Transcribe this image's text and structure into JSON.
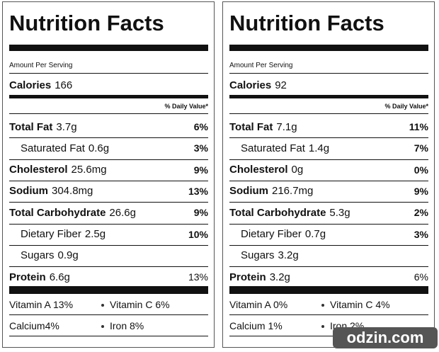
{
  "labels": [
    {
      "title": "Nutrition Facts",
      "amount_per_serving": "Amount Per Serving",
      "calories": {
        "name": "Calories",
        "amount": "166"
      },
      "daily_value_header": "% Daily Value*",
      "rows": [
        {
          "name": "Total Fat",
          "amount": "3.7g",
          "dv": "6%",
          "sub": [
            {
              "name": "Saturated Fat",
              "amount": "0.6g",
              "dv": "3%"
            }
          ]
        },
        {
          "name": "Cholesterol",
          "amount": "25.6mg",
          "dv": "9%"
        },
        {
          "name": "Sodium",
          "amount": "304.8mg",
          "dv": "13%"
        },
        {
          "name": "Total Carbohydrate",
          "amount": "26.6g",
          "dv": "9%",
          "sub": [
            {
              "name": "Dietary Fiber",
              "amount": "2.5g",
              "dv": "10%"
            },
            {
              "name": "Sugars",
              "amount": "0.9g"
            }
          ]
        }
      ],
      "protein": {
        "name": "Protein",
        "amount": "6.6g",
        "dv": "13%"
      },
      "vitamins": [
        [
          "Vitamin A 13%",
          "Vitamin C 6%"
        ],
        [
          "Calcium4%",
          "Iron 8%"
        ]
      ]
    },
    {
      "title": "Nutrition Facts",
      "amount_per_serving": "Amount Per Serving",
      "calories": {
        "name": "Calories",
        "amount": "92"
      },
      "daily_value_header": "% Daily Value*",
      "rows": [
        {
          "name": "Total Fat",
          "amount": "7.1g",
          "dv": "11%",
          "sub": [
            {
              "name": "Saturated Fat",
              "amount": "1.4g",
              "dv": "7%"
            }
          ]
        },
        {
          "name": "Cholesterol",
          "amount": "0g",
          "dv": "0%"
        },
        {
          "name": "Sodium",
          "amount": "216.7mg",
          "dv": "9%"
        },
        {
          "name": "Total Carbohydrate",
          "amount": "5.3g",
          "dv": "2%",
          "sub": [
            {
              "name": "Dietary Fiber",
              "amount": "0.7g",
              "dv": "3%"
            },
            {
              "name": "Sugars",
              "amount": "3.2g"
            }
          ]
        }
      ],
      "protein": {
        "name": "Protein",
        "amount": "3.2g",
        "dv": "6%"
      },
      "vitamins": [
        [
          "Vitamin A 0%",
          "Vitamin C 4%"
        ],
        [
          "Calcium 1%",
          "Iron 2%"
        ]
      ]
    }
  ],
  "watermark": "odzin.com"
}
